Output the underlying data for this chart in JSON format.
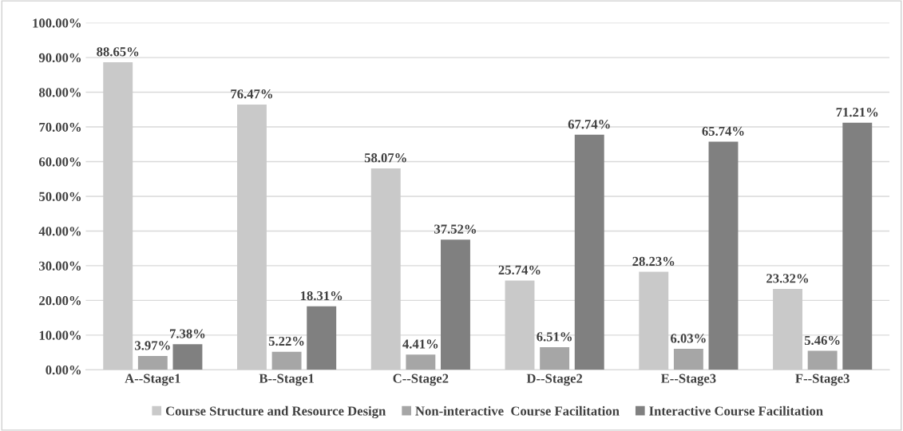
{
  "chart_data": {
    "type": "bar",
    "categories": [
      "A--Stage1",
      "B--Stage1",
      "C--Stage2",
      "D--Stage2",
      "E--Stage3",
      "F--Stage3"
    ],
    "series": [
      {
        "name": "Course Structure and Resource Design",
        "color": "#c9c9c9",
        "values": [
          88.65,
          76.47,
          58.07,
          25.74,
          28.23,
          23.32
        ],
        "value_labels": [
          "88.65%",
          "76.47%",
          "58.07%",
          "25.74%",
          "28.23%",
          "23.32%"
        ]
      },
      {
        "name": "Non-interactive  Course Facilitation",
        "color": "#a6a6a6",
        "values": [
          3.97,
          5.22,
          4.41,
          6.51,
          6.03,
          5.46
        ],
        "value_labels": [
          "3.97%",
          "5.22%",
          "4.41%",
          "6.51%",
          "6.03%",
          "5.46%"
        ]
      },
      {
        "name": "Interactive Course Facilitation",
        "color": "#808080",
        "values": [
          7.38,
          18.31,
          37.52,
          67.74,
          65.74,
          71.21
        ],
        "value_labels": [
          "7.38%",
          "18.31%",
          "37.52%",
          "67.74%",
          "65.74%",
          "71.21%"
        ]
      }
    ],
    "ylim": [
      0,
      100
    ],
    "yticks": [
      {
        "value": 0,
        "label": "0.00%"
      },
      {
        "value": 10,
        "label": "10.00%"
      },
      {
        "value": 20,
        "label": "20.00%"
      },
      {
        "value": 30,
        "label": "30.00%"
      },
      {
        "value": 40,
        "label": "40.00%"
      },
      {
        "value": 50,
        "label": "50.00%"
      },
      {
        "value": 60,
        "label": "60.00%"
      },
      {
        "value": 70,
        "label": "70.00%"
      },
      {
        "value": 80,
        "label": "80.00%"
      },
      {
        "value": 90,
        "label": "90.00%"
      },
      {
        "value": 100,
        "label": "100.00%"
      }
    ],
    "grid": "y",
    "legend": "bottom"
  }
}
